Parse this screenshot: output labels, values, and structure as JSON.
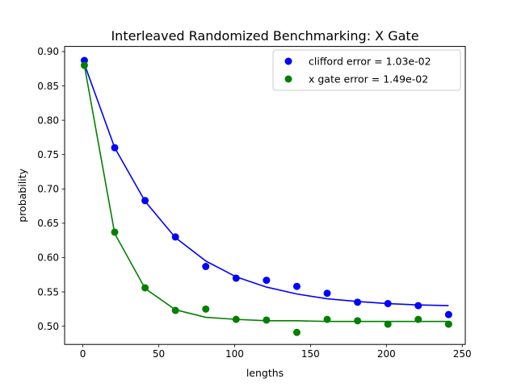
{
  "chart_data": {
    "type": "scatter",
    "title": "Interleaved Randomized Benchmarking: X Gate",
    "xlabel": "lengths",
    "ylabel": "probability",
    "xlim": [
      -12,
      252
    ],
    "ylim": [
      0.4735,
      0.9075
    ],
    "xticks": [
      0,
      50,
      100,
      150,
      200,
      250
    ],
    "yticks": [
      0.5,
      0.55,
      0.6,
      0.65,
      0.7,
      0.75,
      0.8,
      0.85,
      0.9
    ],
    "xtick_labels": [
      "0",
      "50",
      "100",
      "150",
      "200",
      "250"
    ],
    "ytick_labels": [
      "0.50",
      "0.55",
      "0.60",
      "0.65",
      "0.70",
      "0.75",
      "0.80",
      "0.85",
      "0.90"
    ],
    "grid": false,
    "legend_position": "top-right",
    "series": [
      {
        "name": "clifford error =  1.03e-02",
        "color": "#0000ff",
        "points": {
          "x": [
            1,
            21,
            41,
            61,
            81,
            101,
            121,
            141,
            161,
            181,
            201,
            221,
            241
          ],
          "y": [
            0.887,
            0.76,
            0.683,
            0.63,
            0.587,
            0.57,
            0.567,
            0.558,
            0.548,
            0.535,
            0.533,
            0.53,
            0.517
          ]
        },
        "fit": {
          "x": [
            1,
            21,
            41,
            61,
            81,
            101,
            121,
            141,
            161,
            181,
            201,
            221,
            241
          ],
          "y": [
            0.882,
            0.76,
            0.682,
            0.629,
            0.595,
            0.572,
            0.557,
            0.547,
            0.54,
            0.536,
            0.533,
            0.531,
            0.53
          ]
        }
      },
      {
        "name": "x gate error = 1.49e-02",
        "color": "#008000",
        "points": {
          "x": [
            1,
            21,
            41,
            61,
            81,
            101,
            121,
            141,
            161,
            181,
            201,
            221,
            241
          ],
          "y": [
            0.88,
            0.637,
            0.556,
            0.523,
            0.525,
            0.51,
            0.509,
            0.491,
            0.51,
            0.508,
            0.503,
            0.51,
            0.503
          ]
        },
        "fit": {
          "x": [
            1,
            21,
            41,
            61,
            81,
            101,
            121,
            141,
            161,
            181,
            201,
            221,
            241
          ],
          "y": [
            0.88,
            0.635,
            0.555,
            0.524,
            0.513,
            0.51,
            0.508,
            0.508,
            0.507,
            0.507,
            0.507,
            0.507,
            0.507
          ]
        }
      }
    ]
  }
}
